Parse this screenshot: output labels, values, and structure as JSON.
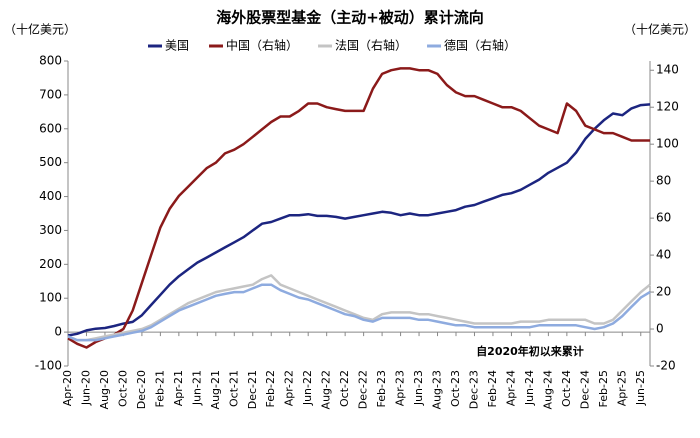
{
  "chart_data": {
    "type": "line",
    "title": "海外股票型基金（主动+被动）累计流向",
    "y_label": "（十亿美元）",
    "y2_label": "（十亿美元）",
    "annotation": "自2020年初以来累计",
    "categories": [
      "Apr-20",
      null,
      "Jun-20",
      null,
      "Aug-20",
      null,
      "Oct-20",
      null,
      "Dec-20",
      null,
      "Feb-21",
      null,
      "Apr-21",
      null,
      "Jun-21",
      null,
      "Aug-21",
      null,
      "Oct-21",
      null,
      "Dec-21",
      null,
      "Feb-22",
      null,
      "Apr-22",
      null,
      "Jun-22",
      null,
      "Aug-22",
      null,
      "Oct-22",
      null,
      "Dec-22",
      null,
      "Feb-23",
      null,
      "Apr-23",
      null,
      "Jun-23",
      null,
      "Aug-23",
      null,
      "Oct-23",
      null,
      "Dec-23",
      null,
      "Feb-24",
      null,
      "Apr-24",
      null,
      "Jun-24",
      null,
      "Aug-24",
      null,
      "Oct-24",
      null,
      "Dec-24",
      null,
      "Feb-25",
      null,
      "Apr-25",
      null,
      "Jun-25",
      null
    ],
    "series": [
      {
        "name": "美国",
        "color": "#1c2580",
        "axis": "y",
        "values": [
          -10,
          -5,
          5,
          10,
          12,
          18,
          25,
          30,
          50,
          80,
          110,
          140,
          165,
          185,
          205,
          220,
          235,
          250,
          265,
          280,
          300,
          320,
          325,
          335,
          345,
          345,
          348,
          343,
          343,
          340,
          335,
          340,
          345,
          350,
          355,
          352,
          345,
          350,
          345,
          345,
          350,
          355,
          360,
          370,
          375,
          385,
          395,
          405,
          410,
          420,
          435,
          450,
          470,
          485,
          500,
          530,
          570,
          600,
          625,
          645,
          640,
          660,
          670,
          672
        ]
      },
      {
        "name": "中国（右轴）",
        "color": "#8b1a1a",
        "axis": "y2",
        "values": [
          -5,
          -8,
          -10,
          -7,
          -5,
          -3,
          0,
          10,
          25,
          40,
          55,
          65,
          72,
          77,
          82,
          87,
          90,
          95,
          97,
          100,
          104,
          108,
          112,
          115,
          115,
          118,
          122,
          122,
          120,
          119,
          118,
          118,
          118,
          130,
          138,
          140,
          141,
          141,
          140,
          140,
          138,
          132,
          128,
          126,
          126,
          124,
          122,
          120,
          120,
          118,
          114,
          110,
          108,
          106,
          122,
          118,
          110,
          108,
          106,
          106,
          104,
          102,
          102,
          102
        ]
      },
      {
        "name": "法国（右轴）",
        "color": "#c4c4c4",
        "axis": "y2",
        "values": [
          -4,
          -6,
          -6,
          -5,
          -4,
          -3,
          -2,
          -1,
          0,
          2,
          5,
          8,
          11,
          14,
          16,
          18,
          20,
          21,
          22,
          23,
          24,
          27,
          29,
          24,
          22,
          20,
          18,
          16,
          14,
          12,
          10,
          8,
          6,
          5,
          8,
          9,
          9,
          9,
          8,
          8,
          7,
          6,
          5,
          4,
          3,
          3,
          3,
          3,
          3,
          4,
          4,
          4,
          5,
          5,
          5,
          5,
          5,
          3,
          3,
          5,
          10,
          15,
          20,
          24
        ]
      },
      {
        "name": "德国（右轴）",
        "color": "#8eabdf",
        "axis": "y2",
        "values": [
          -4,
          -6,
          -6,
          -6,
          -5,
          -4,
          -3,
          -2,
          -1,
          1,
          4,
          7,
          10,
          12,
          14,
          16,
          18,
          19,
          20,
          20,
          22,
          24,
          24,
          21,
          19,
          17,
          16,
          14,
          12,
          10,
          8,
          7,
          5,
          4,
          6,
          6,
          6,
          6,
          5,
          5,
          4,
          3,
          2,
          2,
          1,
          1,
          1,
          1,
          1,
          1,
          1,
          2,
          2,
          2,
          2,
          2,
          1,
          0,
          1,
          3,
          7,
          12,
          17,
          20
        ]
      }
    ],
    "ylim": [
      -100,
      800
    ],
    "yticks": [
      -100,
      0,
      100,
      200,
      300,
      400,
      500,
      600,
      700,
      800
    ],
    "y2lim": [
      -20,
      145
    ],
    "y2ticks": [
      -20,
      0,
      20,
      40,
      60,
      80,
      100,
      120,
      140
    ],
    "negative_tick_color": "#ff0000",
    "legend": "top"
  }
}
